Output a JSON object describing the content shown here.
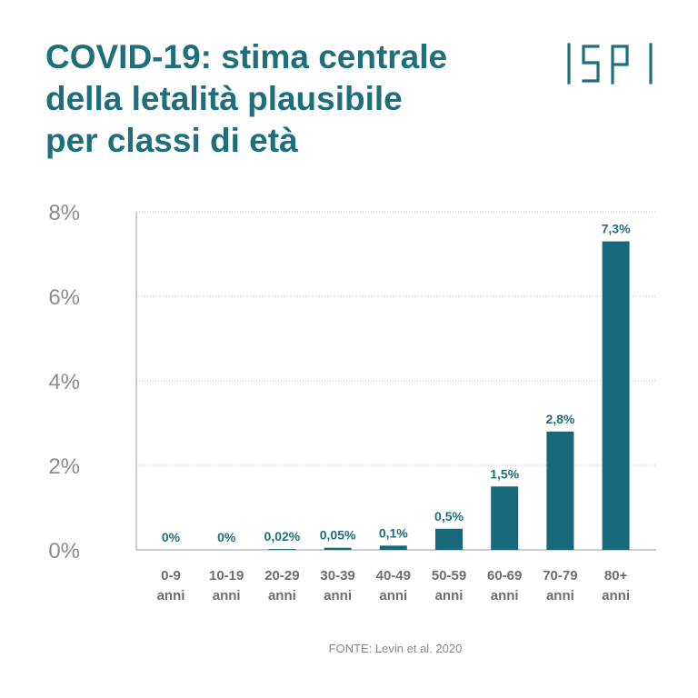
{
  "title_lines": [
    "COVID-19: stima centrale",
    "della letalità plausibile",
    "per classi di età"
  ],
  "logo": {
    "text": "ISPI",
    "color": "#1e6f7c"
  },
  "colors": {
    "bar": "#17687a",
    "title": "#1e6f7c",
    "axis_text": "#8c8c8c",
    "label_text": "#1e6f7c"
  },
  "chart_data": {
    "type": "bar",
    "categories": [
      [
        "0-9",
        "anni"
      ],
      [
        "10-19",
        "anni"
      ],
      [
        "20-29",
        "anni"
      ],
      [
        "30-39",
        "anni"
      ],
      [
        "40-49",
        "anni"
      ],
      [
        "50-59",
        "anni"
      ],
      [
        "60-69",
        "anni"
      ],
      [
        "70-79",
        "anni"
      ],
      [
        "80+",
        "anni"
      ]
    ],
    "values": [
      0,
      0,
      0.02,
      0.05,
      0.1,
      0.5,
      1.5,
      2.8,
      7.3
    ],
    "data_labels": [
      "0%",
      "0%",
      "0,02%",
      "0,05%",
      "0,1%",
      "0,5%",
      "1,5%",
      "2,8%",
      "7,3%"
    ],
    "y_ticks": [
      "0%",
      "2%",
      "4%",
      "6%",
      "8%"
    ],
    "y_tick_values": [
      0,
      2,
      4,
      6,
      8
    ],
    "ylim": [
      0,
      8
    ],
    "grid": true,
    "unit": "%"
  },
  "source": "FONTE: Levin et al. 2020"
}
